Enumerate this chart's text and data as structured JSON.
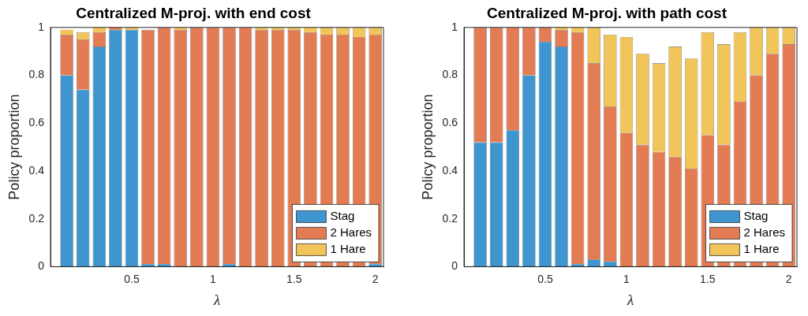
{
  "chart_data": [
    {
      "type": "bar",
      "title": "Centralized M-proj. with end cost",
      "xlabel": "λ",
      "ylabel": "Policy proportion",
      "stacked": true,
      "legend": "bottom right",
      "grid": false,
      "x": [
        0.1,
        0.2,
        0.3,
        0.4,
        0.5,
        0.6,
        0.7,
        0.8,
        0.9,
        1.0,
        1.1,
        1.2,
        1.3,
        1.4,
        1.5,
        1.6,
        1.7,
        1.8,
        1.9,
        2.0
      ],
      "xlim": [
        0,
        2.05
      ],
      "xticks": [
        0.5,
        1,
        1.5,
        2
      ],
      "ylim": [
        0,
        1
      ],
      "yticks": [
        0,
        0.2,
        0.4,
        0.6,
        0.8,
        1
      ],
      "series": [
        {
          "name": "Stag",
          "color": "#3f95d0",
          "values": [
            0.8,
            0.74,
            0.92,
            0.99,
            0.99,
            0.01,
            0.01,
            0,
            0,
            0,
            0.01,
            0,
            0,
            0,
            0,
            0,
            0,
            0,
            0,
            0.01
          ]
        },
        {
          "name": "2 Hares",
          "color": "#e37c53",
          "values": [
            0.17,
            0.21,
            0.06,
            0.01,
            0,
            0.98,
            0.99,
            0.99,
            1,
            1,
            0.99,
            1,
            0.99,
            0.99,
            0.99,
            0.98,
            0.97,
            0.97,
            0.96,
            0.96
          ]
        },
        {
          "name": "1 Hare",
          "color": "#f1c55a",
          "values": [
            0.02,
            0.03,
            0.02,
            0,
            0.01,
            0,
            0,
            0.01,
            0,
            0,
            0,
            0,
            0.01,
            0.01,
            0.01,
            0.02,
            0.03,
            0.03,
            0.04,
            0.03
          ]
        }
      ]
    },
    {
      "type": "bar",
      "title": "Centralized M-proj. with path cost",
      "xlabel": "λ",
      "ylabel": "Policy proportion",
      "stacked": true,
      "legend": "bottom right",
      "grid": false,
      "x": [
        0.1,
        0.2,
        0.3,
        0.4,
        0.5,
        0.6,
        0.7,
        0.8,
        0.9,
        1.0,
        1.1,
        1.2,
        1.3,
        1.4,
        1.5,
        1.6,
        1.7,
        1.8,
        1.9,
        2.0
      ],
      "xlim": [
        0,
        2.05
      ],
      "xticks": [
        0.5,
        1,
        1.5,
        2
      ],
      "ylim": [
        0,
        1
      ],
      "yticks": [
        0,
        0.2,
        0.4,
        0.6,
        0.8,
        1
      ],
      "series": [
        {
          "name": "Stag",
          "color": "#3f95d0",
          "values": [
            0.52,
            0.52,
            0.57,
            0.8,
            0.94,
            0.92,
            0.01,
            0.03,
            0.02,
            0,
            0,
            0,
            0,
            0,
            0,
            0,
            0,
            0,
            0,
            0
          ]
        },
        {
          "name": "2 Hares",
          "color": "#e37c53",
          "values": [
            0.48,
            0.48,
            0.43,
            0.2,
            0.06,
            0.07,
            0.97,
            0.82,
            0.65,
            0.56,
            0.51,
            0.48,
            0.46,
            0.41,
            0.55,
            0.51,
            0.69,
            0.8,
            0.89,
            0.93
          ]
        },
        {
          "name": "1 Hare",
          "color": "#f1c55a",
          "values": [
            0,
            0,
            0,
            0,
            0,
            0.01,
            0.02,
            0.15,
            0.3,
            0.4,
            0.38,
            0.37,
            0.46,
            0.46,
            0.43,
            0.42,
            0.29,
            0.2,
            0.11,
            0.07
          ]
        }
      ]
    }
  ]
}
